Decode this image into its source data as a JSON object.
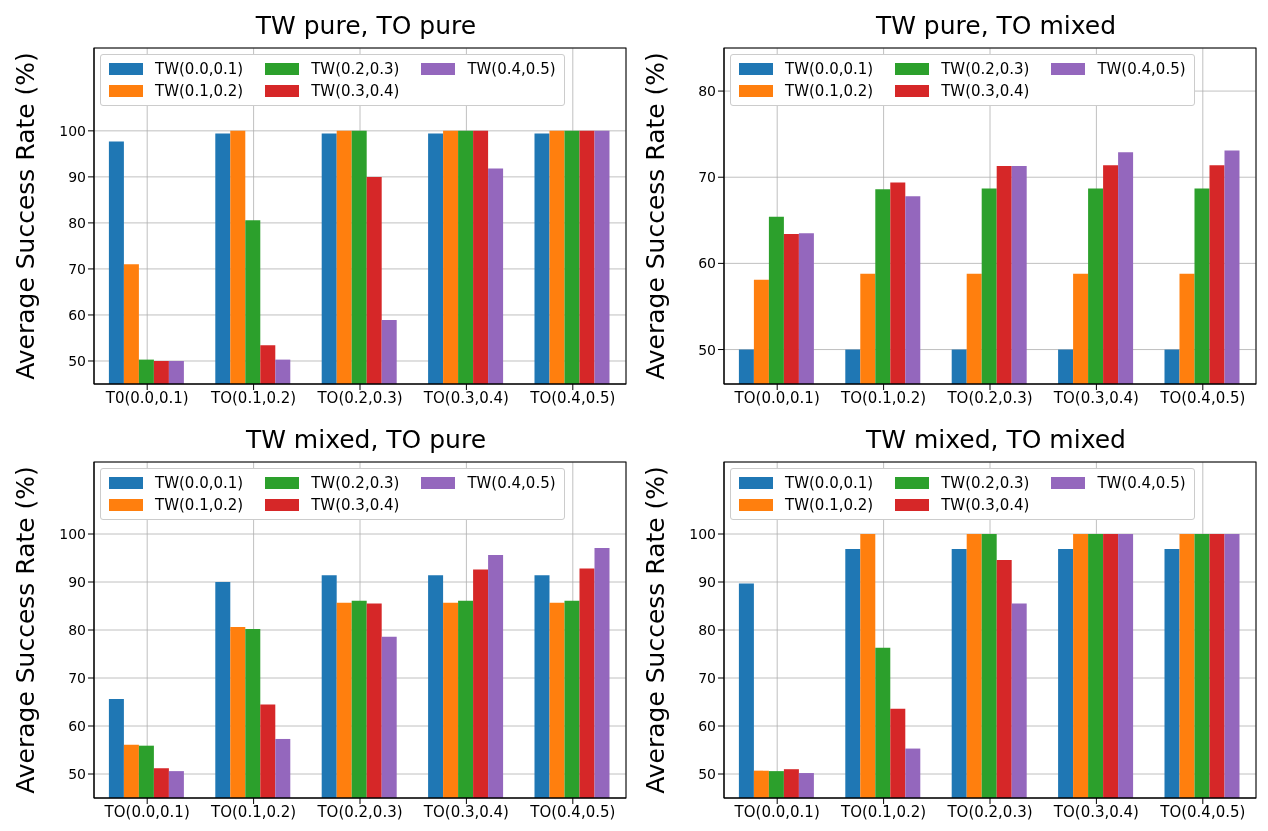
{
  "chart_data": [
    {
      "type": "bar",
      "title": "TW pure, TO pure",
      "ylabel": "Average Success Rate (%)",
      "categories": [
        "T0(0.0,0.1)",
        "TO(0.1,0.2)",
        "TO(0.2,0.3)",
        "TO(0.3,0.4)",
        "TO(0.4,0.5)"
      ],
      "ylim": [
        45,
        118
      ],
      "yticks": [
        50,
        60,
        70,
        80,
        90,
        100
      ],
      "grid": true,
      "legend": "top",
      "series": [
        {
          "name": "TW(0.0,0.1)",
          "color": "#1f77b4",
          "values": [
            97.7,
            99.4,
            99.4,
            99.4,
            99.4
          ]
        },
        {
          "name": "TW(0.1,0.2)",
          "color": "#ff7f0e",
          "values": [
            71,
            100,
            100,
            100,
            100
          ]
        },
        {
          "name": "TW(0.2,0.3)",
          "color": "#2ca02c",
          "values": [
            50.3,
            80.6,
            100,
            100,
            100
          ]
        },
        {
          "name": "TW(0.3,0.4)",
          "color": "#d62728",
          "values": [
            50,
            53.4,
            90,
            100,
            100
          ]
        },
        {
          "name": "TW(0.4,0.5)",
          "color": "#9467bd",
          "values": [
            50,
            50.3,
            58.9,
            91.8,
            100
          ]
        }
      ]
    },
    {
      "type": "bar",
      "title": "TW pure, TO mixed",
      "ylabel": "Average Success Rate (%)",
      "categories": [
        "TO(0.0,0.1)",
        "TO(0.1,0.2)",
        "TO(0.2,0.3)",
        "TO(0.3,0.4)",
        "TO(0.4,0.5)"
      ],
      "ylim": [
        46,
        85
      ],
      "yticks": [
        50,
        60,
        70,
        80
      ],
      "grid": true,
      "legend": "top",
      "series": [
        {
          "name": "TW(0.0,0.1)",
          "color": "#1f77b4",
          "values": [
            50,
            50,
            50,
            50,
            50
          ]
        },
        {
          "name": "TW(0.1,0.2)",
          "color": "#ff7f0e",
          "values": [
            58.1,
            58.8,
            58.8,
            58.8,
            58.8
          ]
        },
        {
          "name": "TW(0.2,0.3)",
          "color": "#2ca02c",
          "values": [
            65.4,
            68.6,
            68.7,
            68.7,
            68.7
          ]
        },
        {
          "name": "TW(0.3,0.4)",
          "color": "#d62728",
          "values": [
            63.4,
            69.4,
            71.3,
            71.4,
            71.4
          ]
        },
        {
          "name": "TW(0.4,0.5)",
          "color": "#9467bd",
          "values": [
            63.5,
            67.8,
            71.3,
            72.9,
            73.1
          ]
        }
      ]
    },
    {
      "type": "bar",
      "title": "TW mixed, TO pure",
      "ylabel": "Average Success Rate (%)",
      "categories": [
        "TO(0.0,0.1)",
        "TO(0.1,0.2)",
        "TO(0.2,0.3)",
        "TO(0.3,0.4)",
        "TO(0.4,0.5)"
      ],
      "ylim": [
        45,
        115
      ],
      "yticks": [
        50,
        60,
        70,
        80,
        90,
        100
      ],
      "grid": true,
      "legend": "top",
      "series": [
        {
          "name": "TW(0.0,0.1)",
          "color": "#1f77b4",
          "values": [
            65.6,
            90,
            91.4,
            91.4,
            91.4
          ]
        },
        {
          "name": "TW(0.1,0.2)",
          "color": "#ff7f0e",
          "values": [
            56.1,
            80.6,
            85.7,
            85.7,
            85.7
          ]
        },
        {
          "name": "TW(0.2,0.3)",
          "color": "#2ca02c",
          "values": [
            55.9,
            80.2,
            86.1,
            86.1,
            86.1
          ]
        },
        {
          "name": "TW(0.3,0.4)",
          "color": "#d62728",
          "values": [
            51.2,
            64.5,
            85.5,
            92.6,
            92.8
          ]
        },
        {
          "name": "TW(0.4,0.5)",
          "color": "#9467bd",
          "values": [
            50.6,
            57.3,
            78.6,
            95.6,
            97.1
          ]
        }
      ]
    },
    {
      "type": "bar",
      "title": "TW mixed, TO mixed",
      "ylabel": "Average Success Rate (%)",
      "categories": [
        "TO(0.0,0.1)",
        "TO(0.1,0.2)",
        "TO(0.2,0.3)",
        "TO(0.3,0.4)",
        "TO(0.4,0.5)"
      ],
      "ylim": [
        45,
        115
      ],
      "yticks": [
        50,
        60,
        70,
        80,
        90,
        100
      ],
      "grid": true,
      "legend": "top",
      "series": [
        {
          "name": "TW(0.0,0.1)",
          "color": "#1f77b4",
          "values": [
            89.7,
            96.9,
            96.9,
            96.9,
            96.9
          ]
        },
        {
          "name": "TW(0.1,0.2)",
          "color": "#ff7f0e",
          "values": [
            50.7,
            100,
            100,
            100,
            100
          ]
        },
        {
          "name": "TW(0.2,0.3)",
          "color": "#2ca02c",
          "values": [
            50.6,
            76.3,
            100,
            100,
            100
          ]
        },
        {
          "name": "TW(0.3,0.4)",
          "color": "#d62728",
          "values": [
            51,
            63.6,
            94.6,
            100,
            100
          ]
        },
        {
          "name": "TW(0.4,0.5)",
          "color": "#9467bd",
          "values": [
            50.2,
            55.3,
            85.5,
            100,
            100
          ]
        }
      ]
    }
  ]
}
